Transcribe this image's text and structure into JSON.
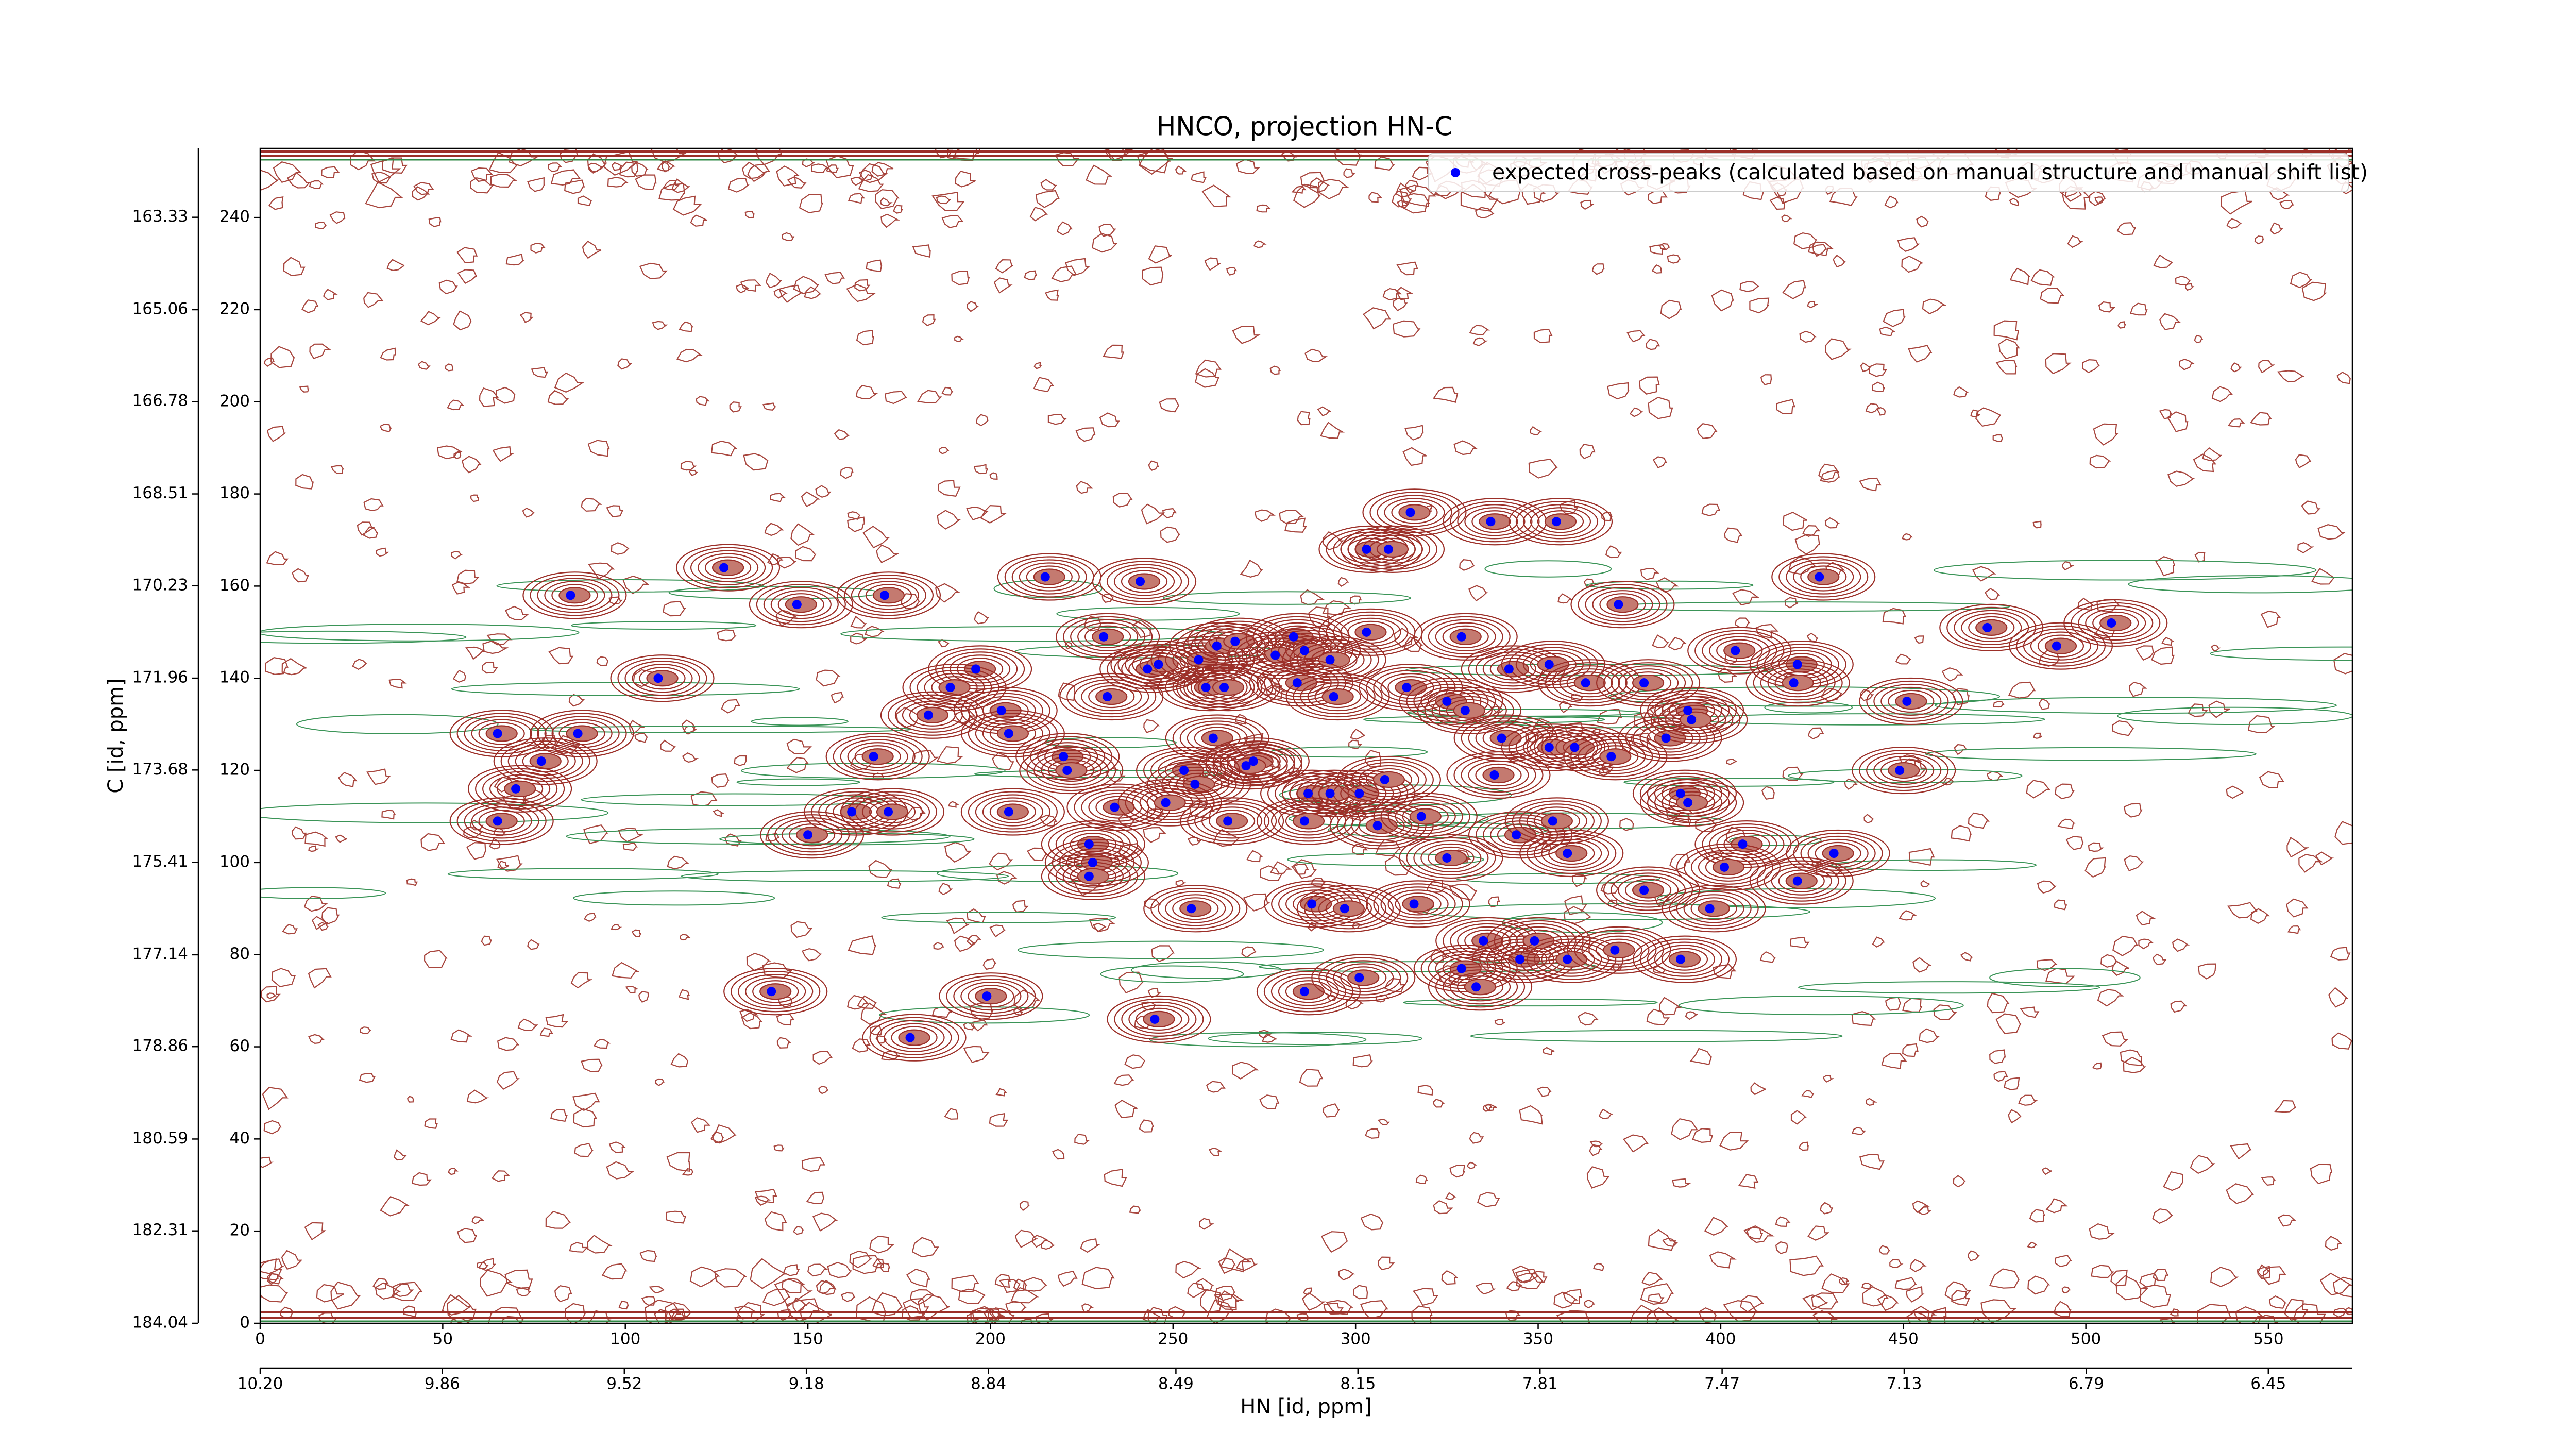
{
  "chart_data": {
    "type": "scatter",
    "title": "HNCO, projection HN-C",
    "x_label": "HN [id, ppm]",
    "y_label": "C [id, ppm]",
    "xlim": [
      0,
      573
    ],
    "ylim": [
      0,
      255
    ],
    "xticks": [
      0,
      50,
      100,
      150,
      200,
      250,
      300,
      350,
      400,
      450,
      500,
      550
    ],
    "yticks": [
      0,
      20,
      40,
      60,
      80,
      100,
      120,
      140,
      160,
      180,
      200,
      220,
      240
    ],
    "x2lim": [
      10.2,
      6.293
    ],
    "x2ticks": [
      {
        "value": 10.2,
        "label": "10.20"
      },
      9.86,
      9.52,
      9.18,
      8.84,
      8.49,
      8.15,
      7.81,
      7.47,
      7.13,
      6.79,
      6.45
    ],
    "y2lim": [
      184.04,
      162.04
    ],
    "y2ticks": [
      184.04,
      182.31,
      180.59,
      178.86,
      177.14,
      175.41,
      173.68,
      171.96,
      170.23,
      168.51,
      166.78,
      165.06,
      163.33
    ],
    "legend": "upper right",
    "series": [
      {
        "name": "expected cross-peaks (calculated based on manual structure and manual shift list)",
        "color": "#0000ff",
        "x": [
          127,
          85,
          147,
          171,
          215,
          241,
          315,
          337,
          355,
          303,
          309,
          372,
          427,
          473,
          492,
          507,
          231,
          243,
          246,
          257,
          262,
          267,
          283,
          278,
          286,
          293,
          303,
          329,
          196,
          189,
          109,
          183,
          203,
          205,
          232,
          259,
          264,
          284,
          294,
          314,
          325,
          342,
          353,
          363,
          379,
          404,
          421,
          420,
          451,
          391,
          65,
          87,
          77,
          168,
          220,
          221,
          261,
          272,
          270,
          253,
          256,
          287,
          293,
          301,
          308,
          330,
          340,
          338,
          353,
          360,
          370,
          385,
          392,
          449,
          389,
          391,
          70,
          65,
          150,
          162,
          172,
          205,
          234,
          227,
          228,
          227,
          248,
          265,
          286,
          306,
          318,
          325,
          344,
          358,
          354,
          406,
          431,
          401,
          421,
          379,
          255,
          288,
          297,
          316,
          397,
          335,
          345,
          349,
          358,
          329,
          371,
          389,
          140,
          199,
          286,
          301,
          333,
          245,
          178
        ],
        "y": [
          164,
          158,
          156,
          158,
          162,
          161,
          176,
          174,
          174,
          168,
          168,
          156,
          162,
          151,
          147,
          152,
          149,
          142,
          143,
          144,
          147,
          148,
          149,
          145,
          146,
          144,
          150,
          149,
          142,
          138,
          140,
          132,
          133,
          128,
          136,
          138,
          138,
          139,
          136,
          138,
          135,
          142,
          143,
          139,
          139,
          146,
          143,
          139,
          135,
          133,
          128,
          128,
          122,
          123,
          123,
          120,
          127,
          122,
          121,
          120,
          117,
          115,
          115,
          115,
          118,
          133,
          127,
          119,
          125,
          125,
          123,
          127,
          131,
          120,
          115,
          113,
          116,
          109,
          106,
          111,
          111,
          111,
          112,
          104,
          100,
          97,
          113,
          109,
          109,
          108,
          110,
          101,
          106,
          102,
          109,
          104,
          102,
          99,
          96,
          94,
          90,
          91,
          90,
          91,
          90,
          83,
          79,
          83,
          79,
          77,
          81,
          79,
          72,
          71,
          72,
          75,
          73,
          66,
          62
        ]
      }
    ]
  }
}
